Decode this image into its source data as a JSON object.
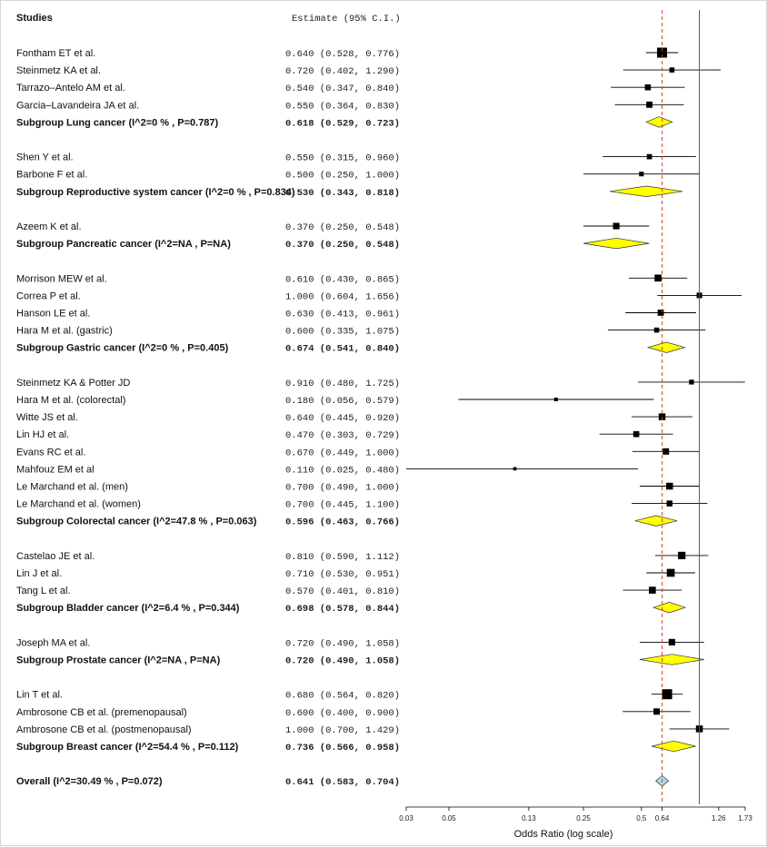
{
  "chart_data": {
    "type": "forest",
    "header": {
      "studies": "Studies",
      "estimate": "Estimate (95% C.I.)"
    },
    "xlabel": "Odds Ratio (log scale)",
    "x_scale": "log",
    "xlim": [
      0.03,
      1.73
    ],
    "ticks": [
      {
        "value": 0.03,
        "label": "0.03"
      },
      {
        "value": 0.05,
        "label": "0.05"
      },
      {
        "value": 0.13,
        "label": "0.13"
      },
      {
        "value": 0.25,
        "label": "0.25"
      },
      {
        "value": 0.5,
        "label": "0.5"
      },
      {
        "value": 0.64,
        "label": "0.64"
      },
      {
        "value": 1.26,
        "label": "1.26"
      },
      {
        "value": 1.73,
        "label": "1.73"
      }
    ],
    "null_line": 1.0,
    "overall_line": 0.641,
    "colors": {
      "subgroup_diamond": "#ffff00",
      "overall_diamond": "#a9dcef",
      "overall_line": "#d9381e",
      "marker": "#000000"
    },
    "rows": [
      {
        "kind": "study",
        "label": "Fontham ET et al.",
        "est": "0.640 (0.528, 0.776)",
        "or": 0.64,
        "lo": 0.528,
        "hi": 0.776
      },
      {
        "kind": "study",
        "label": "Steinmetz KA et al.",
        "est": "0.720 (0.402, 1.290)",
        "or": 0.72,
        "lo": 0.402,
        "hi": 1.29
      },
      {
        "kind": "study",
        "label": "Tarrazo–Antelo AM et al.",
        "est": "0.540 (0.347, 0.840)",
        "or": 0.54,
        "lo": 0.347,
        "hi": 0.84
      },
      {
        "kind": "study",
        "label": "Garcia–Lavandeira JA et al.",
        "est": "0.550 (0.364, 0.830)",
        "or": 0.55,
        "lo": 0.364,
        "hi": 0.83
      },
      {
        "kind": "subgroup",
        "label": "Subgroup Lung cancer (I^2=0 % , P=0.787)",
        "est": "0.618 (0.529, 0.723)",
        "or": 0.618,
        "lo": 0.529,
        "hi": 0.723
      },
      {
        "kind": "blank"
      },
      {
        "kind": "study",
        "label": "Shen Y et al.",
        "est": "0.550 (0.315, 0.960)",
        "or": 0.55,
        "lo": 0.315,
        "hi": 0.96
      },
      {
        "kind": "study",
        "label": "Barbone F et al.",
        "est": "0.500 (0.250, 1.000)",
        "or": 0.5,
        "lo": 0.25,
        "hi": 1.0
      },
      {
        "kind": "subgroup",
        "label": "Subgroup Reproductive system cancer (I^2=0 % , P=0.834)",
        "est": "0.530 (0.343, 0.818)",
        "or": 0.53,
        "lo": 0.343,
        "hi": 0.818
      },
      {
        "kind": "blank"
      },
      {
        "kind": "study",
        "label": "Azeem K et al.",
        "est": "0.370 (0.250, 0.548)",
        "or": 0.37,
        "lo": 0.25,
        "hi": 0.548
      },
      {
        "kind": "subgroup",
        "label": "Subgroup Pancreatic cancer (I^2=NA , P=NA)",
        "est": "0.370 (0.250, 0.548)",
        "or": 0.37,
        "lo": 0.25,
        "hi": 0.548
      },
      {
        "kind": "blank"
      },
      {
        "kind": "study",
        "label": "Morrison MEW et al.",
        "est": "0.610 (0.430, 0.865)",
        "or": 0.61,
        "lo": 0.43,
        "hi": 0.865
      },
      {
        "kind": "study",
        "label": "Correa P et al.",
        "est": "1.000 (0.604, 1.656)",
        "or": 1.0,
        "lo": 0.604,
        "hi": 1.656
      },
      {
        "kind": "study",
        "label": "Hanson LE et al.",
        "est": "0.630 (0.413, 0.961)",
        "or": 0.63,
        "lo": 0.413,
        "hi": 0.961
      },
      {
        "kind": "study",
        "label": "Hara M et al. (gastric)",
        "est": "0.600 (0.335, 1.075)",
        "or": 0.6,
        "lo": 0.335,
        "hi": 1.075
      },
      {
        "kind": "subgroup",
        "label": "Subgroup Gastric cancer (I^2=0 % , P=0.405)",
        "est": "0.674 (0.541, 0.840)",
        "or": 0.674,
        "lo": 0.541,
        "hi": 0.84
      },
      {
        "kind": "blank"
      },
      {
        "kind": "study",
        "label": "Steinmetz KA & Potter JD",
        "est": "0.910 (0.480, 1.725)",
        "or": 0.91,
        "lo": 0.48,
        "hi": 1.725
      },
      {
        "kind": "study",
        "label": "Hara M et al. (colorectal)",
        "est": "0.180 (0.056, 0.579)",
        "or": 0.18,
        "lo": 0.056,
        "hi": 0.579
      },
      {
        "kind": "study",
        "label": "Witte JS et al.",
        "est": "0.640 (0.445, 0.920)",
        "or": 0.64,
        "lo": 0.445,
        "hi": 0.92
      },
      {
        "kind": "study",
        "label": "Lin HJ et al.",
        "est": "0.470 (0.303, 0.729)",
        "or": 0.47,
        "lo": 0.303,
        "hi": 0.729
      },
      {
        "kind": "study",
        "label": "Evans RC et al.",
        "est": "0.670 (0.449, 1.000)",
        "or": 0.67,
        "lo": 0.449,
        "hi": 1.0
      },
      {
        "kind": "study",
        "label": "Mahfouz EM et al",
        "est": "0.110 (0.025, 0.480)",
        "or": 0.11,
        "lo": 0.025,
        "hi": 0.48
      },
      {
        "kind": "study",
        "label": "Le Marchand et al. (men)",
        "est": "0.700 (0.490, 1.000)",
        "or": 0.7,
        "lo": 0.49,
        "hi": 1.0
      },
      {
        "kind": "study",
        "label": "Le Marchand et al. (women)",
        "est": "0.700 (0.445, 1.100)",
        "or": 0.7,
        "lo": 0.445,
        "hi": 1.1
      },
      {
        "kind": "subgroup",
        "label": "Subgroup Colorectal cancer (I^2=47.8 % , P=0.063)",
        "est": "0.596 (0.463, 0.766)",
        "or": 0.596,
        "lo": 0.463,
        "hi": 0.766
      },
      {
        "kind": "blank"
      },
      {
        "kind": "study",
        "label": "Castelao JE et al.",
        "est": "0.810 (0.590, 1.112)",
        "or": 0.81,
        "lo": 0.59,
        "hi": 1.112
      },
      {
        "kind": "study",
        "label": "Lin J et al.",
        "est": "0.710 (0.530, 0.951)",
        "or": 0.71,
        "lo": 0.53,
        "hi": 0.951
      },
      {
        "kind": "study",
        "label": "Tang L et al.",
        "est": "0.570 (0.401, 0.810)",
        "or": 0.57,
        "lo": 0.401,
        "hi": 0.81
      },
      {
        "kind": "subgroup",
        "label": "Subgroup Bladder cancer (I^2=6.4 % , P=0.344)",
        "est": "0.698 (0.578, 0.844)",
        "or": 0.698,
        "lo": 0.578,
        "hi": 0.844
      },
      {
        "kind": "blank"
      },
      {
        "kind": "study",
        "label": "Joseph MA et al.",
        "est": "0.720 (0.490, 1.058)",
        "or": 0.72,
        "lo": 0.49,
        "hi": 1.058
      },
      {
        "kind": "subgroup",
        "label": "Subgroup Prostate cancer (I^2=NA , P=NA)",
        "est": "0.720 (0.490, 1.058)",
        "or": 0.72,
        "lo": 0.49,
        "hi": 1.058
      },
      {
        "kind": "blank"
      },
      {
        "kind": "study",
        "label": "Lin T et al.",
        "est": "0.680 (0.564, 0.820)",
        "or": 0.68,
        "lo": 0.564,
        "hi": 0.82
      },
      {
        "kind": "study",
        "label": "Ambrosone CB et al. (premenopausal)",
        "est": "0.600 (0.400, 0.900)",
        "or": 0.6,
        "lo": 0.4,
        "hi": 0.9
      },
      {
        "kind": "study",
        "label": "Ambrosone CB et al. (postmenopausal)",
        "est": "1.000 (0.700, 1.429)",
        "or": 1.0,
        "lo": 0.7,
        "hi": 1.429
      },
      {
        "kind": "subgroup",
        "label": "Subgroup Breast cancer (I^2=54.4 % , P=0.112)",
        "est": "0.736 (0.566, 0.958)",
        "or": 0.736,
        "lo": 0.566,
        "hi": 0.958
      },
      {
        "kind": "blank"
      },
      {
        "kind": "overall",
        "label": "Overall (I^2=30.49 % , P=0.072)",
        "est": "0.641 (0.583, 0.704)",
        "or": 0.641,
        "lo": 0.583,
        "hi": 0.704
      }
    ]
  }
}
